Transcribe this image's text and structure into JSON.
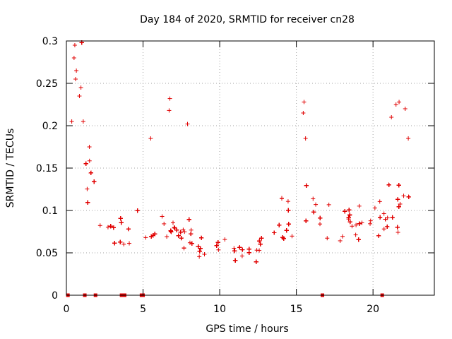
{
  "chart_data": {
    "type": "scatter",
    "title": "Day 184 of 2020, SRMTID for receiver cn28",
    "xlabel": "GPS time / hours",
    "ylabel": "SRMTID / TECUs",
    "xlim": [
      0,
      24
    ],
    "ylim": [
      0,
      0.3
    ],
    "xticks": [
      0,
      5,
      10,
      15,
      20
    ],
    "yticks": [
      0,
      0.05,
      0.1,
      0.15,
      0.2,
      0.25,
      0.3
    ],
    "xtick_labels": [
      "0",
      "5",
      "10",
      "15",
      "20"
    ],
    "ytick_labels": [
      "0",
      "0.05",
      "0.1",
      "0.15",
      "0.2",
      "0.25",
      "0.3"
    ],
    "grid": true,
    "marker": "+",
    "color": "#e00000",
    "series": [
      {
        "name": "SRMTID",
        "trend": {
          "x": [
            0,
            0.3,
            0.6,
            1.0,
            1.5,
            2.0,
            2.5,
            3.0,
            4.0,
            5.0,
            6.0,
            7.0,
            8.0,
            9.0,
            10.0,
            11.0,
            12.0,
            13.0,
            14.0,
            15.0,
            16.0,
            17.0,
            18.0,
            19.0,
            20.0,
            21.0,
            22.0,
            22.5
          ],
          "y": [
            0.13,
            0.17,
            0.2,
            0.19,
            0.14,
            0.1,
            0.085,
            0.075,
            0.065,
            0.07,
            0.075,
            0.07,
            0.065,
            0.055,
            0.05,
            0.05,
            0.045,
            0.06,
            0.075,
            0.09,
            0.095,
            0.085,
            0.08,
            0.085,
            0.085,
            0.09,
            0.11,
            0.13
          ]
        },
        "peaks": [
          {
            "x": 0.55,
            "y": 0.295
          },
          {
            "x": 0.5,
            "y": 0.28
          },
          {
            "x": 0.65,
            "y": 0.265
          },
          {
            "x": 0.95,
            "y": 0.245
          },
          {
            "x": 0.85,
            "y": 0.235
          },
          {
            "x": 0.35,
            "y": 0.205
          },
          {
            "x": 1.1,
            "y": 0.205
          },
          {
            "x": 0.6,
            "y": 0.255
          },
          {
            "x": 1.5,
            "y": 0.175
          },
          {
            "x": 6.75,
            "y": 0.232
          },
          {
            "x": 6.7,
            "y": 0.218
          },
          {
            "x": 7.9,
            "y": 0.202
          },
          {
            "x": 5.5,
            "y": 0.185
          },
          {
            "x": 15.5,
            "y": 0.228
          },
          {
            "x": 15.45,
            "y": 0.215
          },
          {
            "x": 15.6,
            "y": 0.185
          },
          {
            "x": 21.5,
            "y": 0.225
          },
          {
            "x": 21.7,
            "y": 0.228
          },
          {
            "x": 22.1,
            "y": 0.22
          },
          {
            "x": 21.2,
            "y": 0.21
          },
          {
            "x": 22.3,
            "y": 0.185
          }
        ],
        "zero_points": [
          0.1,
          1.2,
          1.9,
          3.6,
          3.7,
          3.8,
          4.9,
          5.0,
          16.7,
          20.6
        ]
      }
    ]
  }
}
